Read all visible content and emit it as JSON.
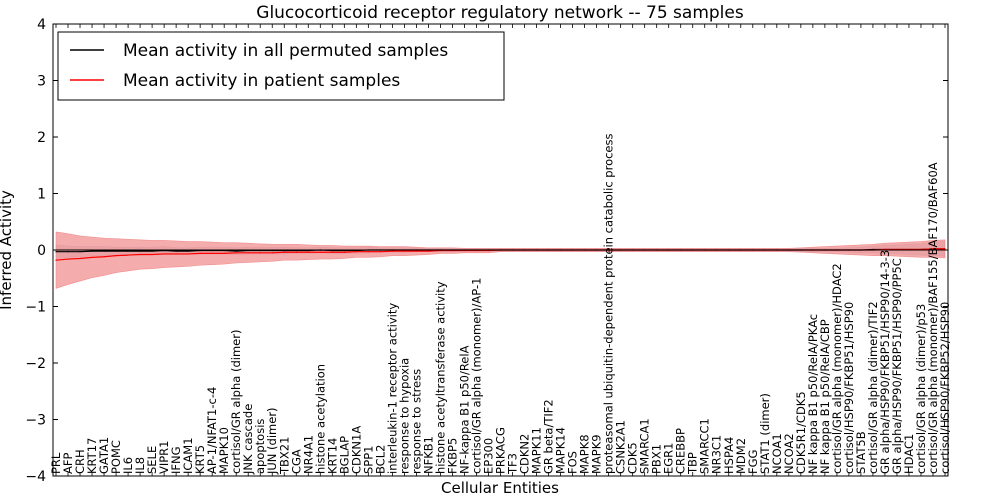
{
  "chart_data": {
    "type": "line",
    "title": "Glucocorticoid receptor regulatory network -- 75 samples",
    "xlabel": "Cellular Entities",
    "ylabel": "Inferred Activity",
    "ylim": [
      -4,
      4
    ],
    "yticks": [
      -4,
      -3,
      -2,
      -1,
      0,
      1,
      2,
      3,
      4
    ],
    "ytick_labels": [
      "−4",
      "−3",
      "−2",
      "−1",
      "0",
      "1",
      "2",
      "3",
      "4"
    ],
    "legend": {
      "placement": "top-left"
    },
    "colors": {
      "permuted": "#000000",
      "patient": "#ff0000",
      "patient_band": "#f08080",
      "permuted_band": "#c8c8d8",
      "zero_line": "#000000"
    },
    "categories": [
      "PRL",
      "AFP",
      "CRH",
      "KRT17",
      "GATA1",
      "POMC",
      "IL6",
      "IL8",
      "SELE",
      "VIPR1",
      "IFNG",
      "ICAM1",
      "KRT5",
      "AP-1/NFAT1-c-4",
      "MAPK10",
      "cortisol/GR alpha (dimer)",
      "JNK cascade",
      "apoptosis",
      "JUN (dimer)",
      "TBX21",
      "CGA",
      "NR4A1",
      "histone acetylation",
      "KRT14",
      "BGLAP",
      "CDKN1A",
      "SPP1",
      "BCL2",
      "interleukin-1 receptor activity",
      "response to hypoxia",
      "response to stress",
      "NFKB1",
      "histone acetyltransferase activity",
      "FKBP5",
      "NF-kappa B1 p50/RelA",
      "cortisol/GR alpha (monomer)/AP-1",
      "EP300",
      "PRKACG",
      "TF3",
      "CDKN2",
      "MAPK11",
      "GR beta/TIF2",
      "MAPK14",
      "FOS",
      "MAPK8",
      "MAPK9",
      "proteasomal ubiquitin-dependent protein catabolic process",
      "CSNK2A1",
      "CDK5",
      "SMARCA1",
      "PBX1",
      "EGR1",
      "CREBBP",
      "TBP",
      "SMARCC1",
      "NR3C1",
      "HSPA4",
      "MDM2",
      "FGG",
      "STAT1 (dimer)",
      "NCOA1",
      "NCOA2",
      "CDK5R1/CDK5",
      "NF kappa B1 p50/RelA/PKAc",
      "NF kappa B1 p50/RelA/CBP",
      "cortisol/GR alpha (monomer)/HDAC2",
      "cortisol/HSP90/FKBP51/HSP90",
      "STAT5B",
      "cortisol/GR alpha (dimer)/TIF2",
      "GR alpha/HSP90/FKBP51/HSP90/14-3-3",
      "GR alpha/HSP90/FKBP51/HSP90/PP5C",
      "HDAC1",
      "cortisol/GR alpha (dimer)/p53",
      "cortisol/GR alpha (monomer)/BAF155/BAF170/BAF60A",
      "cortisol/HSP90/FKBP52/HSP90"
    ],
    "series": [
      {
        "name": "Mean activity in all permuted samples",
        "color": "#000000",
        "values": [
          -0.03,
          -0.03,
          -0.03,
          -0.02,
          -0.02,
          -0.02,
          -0.02,
          -0.02,
          -0.02,
          -0.01,
          -0.02,
          -0.02,
          -0.01,
          -0.01,
          -0.01,
          -0.02,
          -0.01,
          -0.01,
          -0.01,
          -0.01,
          -0.01,
          -0.01,
          0.0,
          -0.01,
          -0.01,
          -0.01,
          0.0,
          0.0,
          0.0,
          0.0,
          0.0,
          0.0,
          0.0,
          0.0,
          0.0,
          0.0,
          0.0,
          0.0,
          0.0,
          0.0,
          0.0,
          0.0,
          0.0,
          0.0,
          0.0,
          0.0,
          0.0,
          0.0,
          0.0,
          0.0,
          0.0,
          0.0,
          0.0,
          0.0,
          0.0,
          0.0,
          0.0,
          0.0,
          0.0,
          0.0,
          0.0,
          0.0,
          0.0,
          0.0,
          0.0,
          0.0,
          0.0,
          0.0,
          0.01,
          0.01,
          0.01,
          0.01,
          0.01,
          0.02,
          0.02
        ],
        "band": [
          0.12,
          0.1,
          0.09,
          0.08,
          0.08,
          0.07,
          0.07,
          0.07,
          0.07,
          0.07,
          0.06,
          0.06,
          0.06,
          0.06,
          0.06,
          0.06,
          0.06,
          0.06,
          0.06,
          0.06,
          0.05,
          0.05,
          0.05,
          0.05,
          0.05,
          0.05,
          0.05,
          0.04,
          0.04,
          0.04,
          0.03,
          0.03,
          0.03,
          0.03,
          0.02,
          0.02,
          0.02,
          0.02,
          0.02,
          0.02,
          0.02,
          0.02,
          0.02,
          0.02,
          0.02,
          0.02,
          0.02,
          0.02,
          0.02,
          0.02,
          0.02,
          0.02,
          0.02,
          0.02,
          0.02,
          0.02,
          0.02,
          0.02,
          0.02,
          0.02,
          0.02,
          0.02,
          0.03,
          0.03,
          0.03,
          0.03,
          0.04,
          0.05,
          0.06,
          0.07,
          0.08,
          0.09,
          0.1,
          0.12,
          0.13
        ]
      },
      {
        "name": "Mean activity in patient samples",
        "color": "#ff0000",
        "values": [
          -0.18,
          -0.16,
          -0.15,
          -0.13,
          -0.12,
          -0.1,
          -0.09,
          -0.08,
          -0.08,
          -0.07,
          -0.07,
          -0.07,
          -0.06,
          -0.06,
          -0.06,
          -0.05,
          -0.05,
          -0.05,
          -0.05,
          -0.04,
          -0.04,
          -0.04,
          -0.04,
          -0.04,
          -0.04,
          -0.03,
          -0.03,
          -0.03,
          -0.02,
          -0.02,
          -0.02,
          -0.02,
          -0.01,
          -0.01,
          -0.01,
          -0.01,
          -0.01,
          0.0,
          0.0,
          0.0,
          0.0,
          0.0,
          0.0,
          0.0,
          0.0,
          0.0,
          0.0,
          0.0,
          0.0,
          0.0,
          0.0,
          0.0,
          0.0,
          0.0,
          0.0,
          0.0,
          0.0,
          0.0,
          0.0,
          0.0,
          0.0,
          0.0,
          0.0,
          0.0,
          0.0,
          0.0,
          0.0,
          0.0,
          0.0,
          0.01,
          0.01,
          0.01,
          0.01,
          0.02,
          0.02
        ],
        "band": [
          0.5,
          0.45,
          0.4,
          0.36,
          0.33,
          0.3,
          0.28,
          0.26,
          0.25,
          0.24,
          0.23,
          0.22,
          0.21,
          0.2,
          0.19,
          0.18,
          0.17,
          0.16,
          0.15,
          0.14,
          0.14,
          0.13,
          0.12,
          0.12,
          0.11,
          0.1,
          0.1,
          0.09,
          0.08,
          0.08,
          0.07,
          0.06,
          0.05,
          0.05,
          0.04,
          0.04,
          0.04,
          0.03,
          0.03,
          0.03,
          0.03,
          0.03,
          0.03,
          0.03,
          0.03,
          0.03,
          0.03,
          0.03,
          0.03,
          0.03,
          0.03,
          0.03,
          0.03,
          0.03,
          0.03,
          0.03,
          0.03,
          0.03,
          0.03,
          0.03,
          0.03,
          0.03,
          0.04,
          0.05,
          0.06,
          0.07,
          0.08,
          0.09,
          0.1,
          0.11,
          0.12,
          0.13,
          0.14,
          0.15,
          0.16
        ]
      }
    ]
  }
}
